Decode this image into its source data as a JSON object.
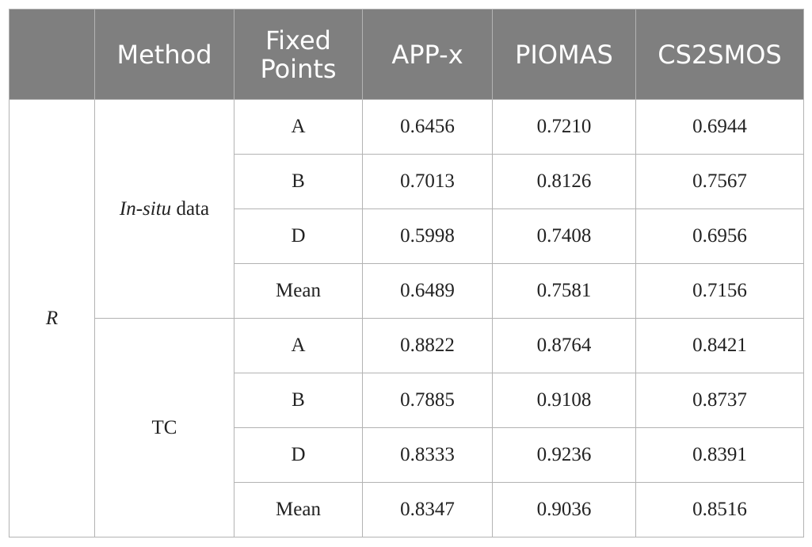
{
  "header": {
    "corner": "",
    "method": "Method",
    "fixed_points_line1": "Fixed",
    "fixed_points_line2": "Points",
    "app_x": "APP-x",
    "piomas": "PIOMAS",
    "cs2smos": "CS2SMOS"
  },
  "metric_label": "R",
  "groups": [
    {
      "method_italic": "In-situ",
      "method_rest": " data",
      "rows": [
        {
          "point": "A",
          "app_x": "0.6456",
          "piomas": "0.7210",
          "cs2smos": "0.6944"
        },
        {
          "point": "B",
          "app_x": "0.7013",
          "piomas": "0.8126",
          "cs2smos": "0.7567"
        },
        {
          "point": "D",
          "app_x": "0.5998",
          "piomas": "0.7408",
          "cs2smos": "0.6956"
        },
        {
          "point": "Mean",
          "app_x": "0.6489",
          "piomas": "0.7581",
          "cs2smos": "0.7156"
        }
      ]
    },
    {
      "method_italic": "",
      "method_rest": "TC",
      "rows": [
        {
          "point": "A",
          "app_x": "0.8822",
          "piomas": "0.8764",
          "cs2smos": "0.8421"
        },
        {
          "point": "B",
          "app_x": "0.7885",
          "piomas": "0.9108",
          "cs2smos": "0.8737"
        },
        {
          "point": "D",
          "app_x": "0.8333",
          "piomas": "0.9236",
          "cs2smos": "0.8391"
        },
        {
          "point": "Mean",
          "app_x": "0.8347",
          "piomas": "0.9036",
          "cs2smos": "0.8516"
        }
      ]
    }
  ]
}
